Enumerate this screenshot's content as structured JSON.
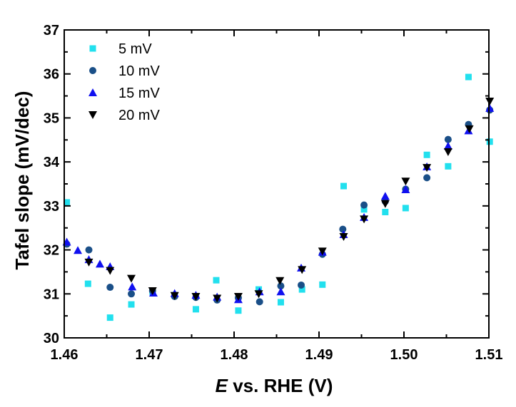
{
  "chart_data": {
    "type": "scatter",
    "title": "",
    "xlabel_italic": "E",
    "xlabel_rest": " vs. RHE (V)",
    "ylabel": "Tafel slope (mV/dec)",
    "xlim": [
      1.46,
      1.51
    ],
    "ylim": [
      30,
      37
    ],
    "xticks": [
      1.46,
      1.47,
      1.48,
      1.49,
      1.5,
      1.51
    ],
    "xtick_labels": [
      "1.46",
      "1.47",
      "1.48",
      "1.49",
      "1.50",
      "1.51"
    ],
    "yticks": [
      30,
      31,
      32,
      33,
      34,
      35,
      36,
      37
    ],
    "ytick_labels": [
      "30",
      "31",
      "32",
      "33",
      "34",
      "35",
      "36",
      "37"
    ],
    "legend_position": "top-left",
    "series": [
      {
        "name": "5 mV",
        "marker": "square",
        "color": "#22e0ee",
        "x": [
          1.4603,
          1.4628,
          1.4654,
          1.4679,
          1.4704,
          1.473,
          1.4755,
          1.4779,
          1.4805,
          1.4829,
          1.4855,
          1.488,
          1.4904,
          1.4929,
          1.4953,
          1.4978,
          1.5002,
          1.5027,
          1.5052,
          1.5076,
          1.5101
        ],
        "y": [
          33.08,
          31.23,
          30.46,
          30.76,
          31.05,
          30.97,
          30.65,
          31.31,
          30.62,
          31.1,
          30.81,
          31.1,
          31.21,
          33.45,
          32.92,
          32.86,
          32.95,
          34.16,
          33.9,
          35.93,
          34.46
        ]
      },
      {
        "name": "10 mV",
        "marker": "circle",
        "color": "#1a4f88",
        "x": [
          1.4603,
          1.4629,
          1.4654,
          1.4679,
          1.4704,
          1.473,
          1.4755,
          1.478,
          1.4805,
          1.483,
          1.4855,
          1.4879,
          1.4904,
          1.4928,
          1.4953,
          1.4978,
          1.5002,
          1.5027,
          1.5052,
          1.5076,
          1.5101
        ],
        "y": [
          32.13,
          32.0,
          31.15,
          31.0,
          31.07,
          30.94,
          30.92,
          30.86,
          30.91,
          30.82,
          31.18,
          31.2,
          31.9,
          32.47,
          33.02,
          33.1,
          33.38,
          33.64,
          34.51,
          34.85,
          35.18
        ]
      },
      {
        "name": "15 mV",
        "marker": "triangle-up",
        "color": "#1010f0",
        "x": [
          1.4603,
          1.4616,
          1.4629,
          1.4642,
          1.4654,
          1.468,
          1.4705,
          1.473,
          1.4755,
          1.478,
          1.4805,
          1.483,
          1.4855,
          1.4879,
          1.4904,
          1.4929,
          1.4953,
          1.4978,
          1.5002,
          1.5027,
          1.5052,
          1.5076,
          1.5101
        ],
        "y": [
          32.18,
          31.99,
          31.78,
          31.68,
          31.62,
          31.16,
          31.02,
          31.01,
          30.97,
          30.93,
          30.87,
          31.05,
          31.05,
          31.59,
          31.95,
          32.35,
          32.74,
          33.22,
          33.37,
          33.89,
          34.36,
          34.71,
          35.22
        ]
      },
      {
        "name": "20 mV",
        "marker": "triangle-down",
        "color": "#000000",
        "x": [
          1.4629,
          1.4654,
          1.4679,
          1.4704,
          1.473,
          1.4755,
          1.478,
          1.4805,
          1.4829,
          1.4854,
          1.488,
          1.4904,
          1.4929,
          1.4953,
          1.4978,
          1.5002,
          1.5027,
          1.5052,
          1.5077,
          1.5101
        ],
        "y": [
          31.72,
          31.53,
          31.35,
          31.07,
          30.96,
          30.94,
          30.9,
          30.94,
          31.0,
          31.3,
          31.55,
          31.97,
          32.3,
          32.7,
          33.05,
          33.56,
          33.87,
          34.23,
          34.75,
          35.38
        ]
      }
    ]
  }
}
